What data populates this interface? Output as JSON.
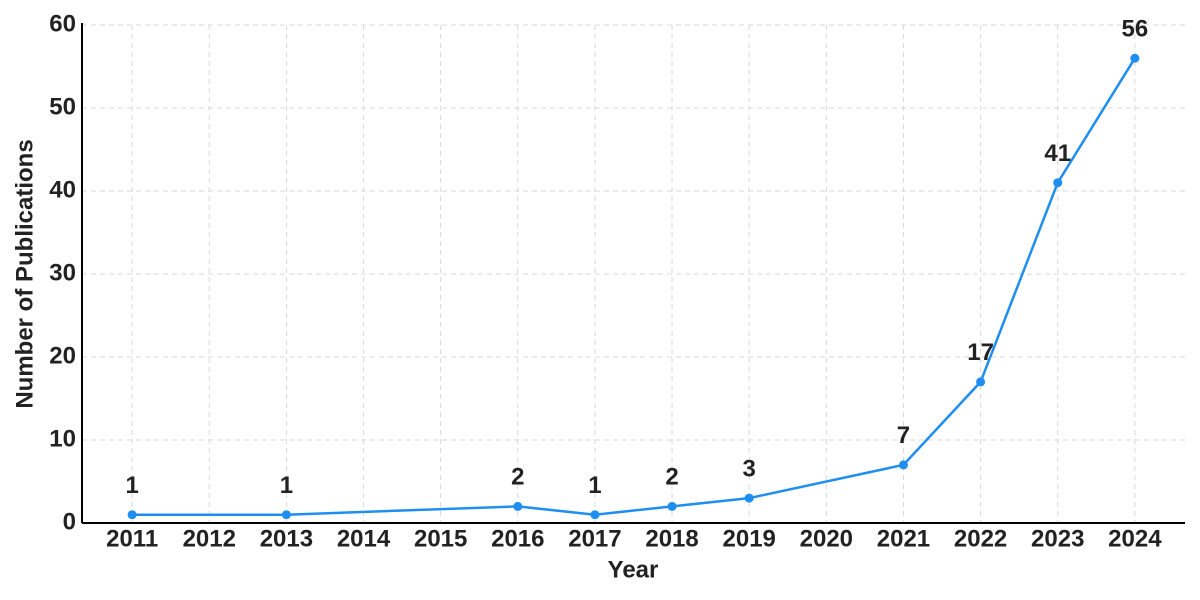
{
  "chart_data": {
    "type": "line",
    "x_label": "Year",
    "y_label": "Number of Publications",
    "x": [
      2011,
      2013,
      2016,
      2017,
      2018,
      2019,
      2021,
      2022,
      2023,
      2024
    ],
    "series": [
      {
        "name": "Publications",
        "color": "#1f8ef1",
        "values": [
          1,
          1,
          2,
          1,
          2,
          3,
          7,
          17,
          41,
          56
        ]
      }
    ],
    "xlim": [
      2010.35,
      2024.65
    ],
    "ylim": [
      0,
      60
    ],
    "xticks": [
      2011,
      2012,
      2013,
      2014,
      2015,
      2016,
      2017,
      2018,
      2019,
      2020,
      2021,
      2022,
      2023,
      2024
    ],
    "yticks": [
      0,
      10,
      20,
      30,
      40,
      50,
      60
    ],
    "grid": true
  }
}
